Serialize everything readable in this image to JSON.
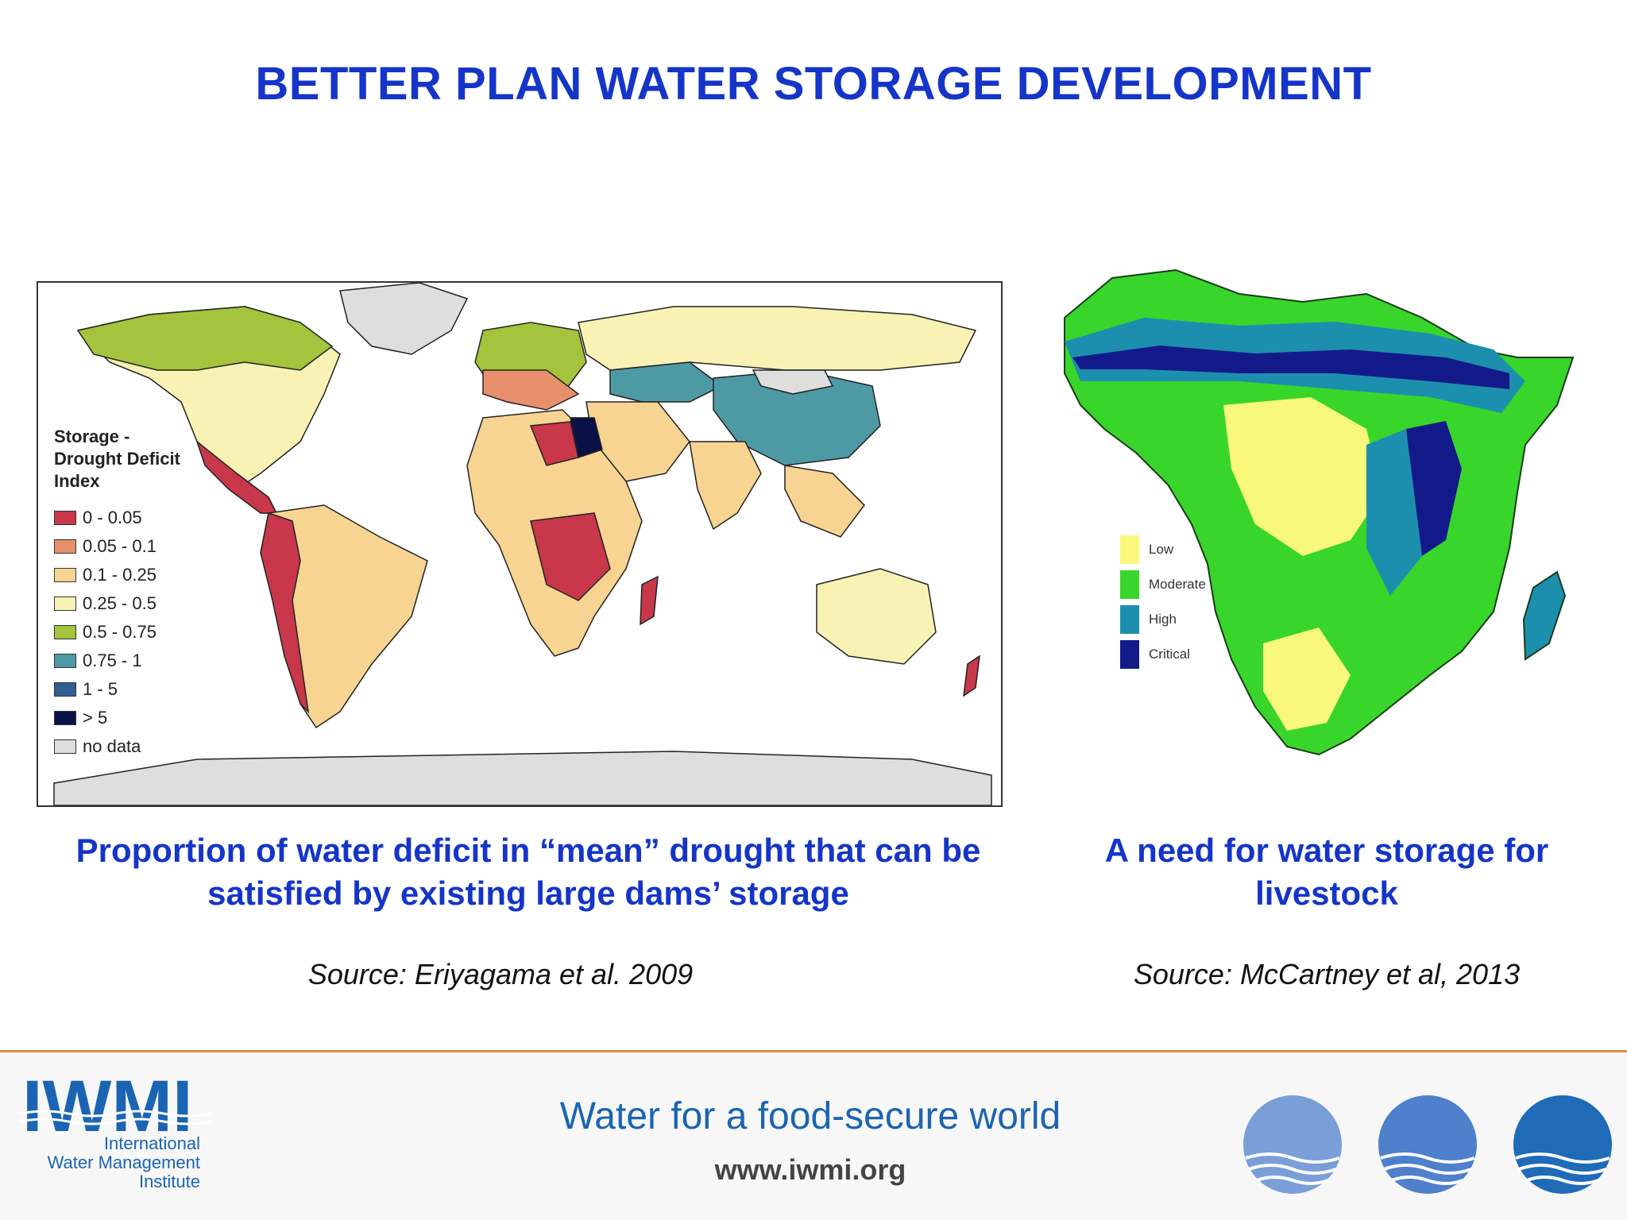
{
  "slide": {
    "title": "BETTER PLAN WATER STORAGE DEVELOPMENT"
  },
  "world_map": {
    "legend": {
      "title_lines": [
        "Storage -",
        "Drought Deficit",
        "Index"
      ],
      "items": [
        {
          "label": "0 - 0.05",
          "color": "#c8384a"
        },
        {
          "label": "0.05 - 0.1",
          "color": "#e8906c"
        },
        {
          "label": "0.1 - 0.25",
          "color": "#f7d491"
        },
        {
          "label": "0.25 - 0.5",
          "color": "#f8f3b4"
        },
        {
          "label": "0.5 - 0.75",
          "color": "#a3c43c"
        },
        {
          "label": "0.75 - 1",
          "color": "#4d9aa5"
        },
        {
          "label": "1 - 5",
          "color": "#2f5e93"
        },
        {
          "label": "> 5",
          "color": "#0a1146"
        },
        {
          "label": "no data",
          "color": "#dedede"
        }
      ]
    },
    "caption": "Proportion of water deficit in “mean” drought  that can be satisfied by existing large dams’  storage",
    "source": "Source: Eriyagama et al. 2009"
  },
  "africa_map": {
    "legend": {
      "items": [
        {
          "label": "Low",
          "color": "#f8f87a"
        },
        {
          "label": "Moderate",
          "color": "#38d62a"
        },
        {
          "label": "High",
          "color": "#1d8fae"
        },
        {
          "label": "Critical",
          "color": "#121a8a"
        }
      ]
    },
    "caption": "A need for water storage for livestock",
    "source": "Source: McCartney et al, 2013"
  },
  "footer": {
    "logo_letters": "IWMI",
    "logo_lines": [
      "International",
      "Water Management",
      "Institute"
    ],
    "tagline": "Water for a food-secure world",
    "website": "www.iwmi.org",
    "circle_colors": [
      "#7a9fd8",
      "#4f80cc",
      "#1f6bb8"
    ]
  }
}
